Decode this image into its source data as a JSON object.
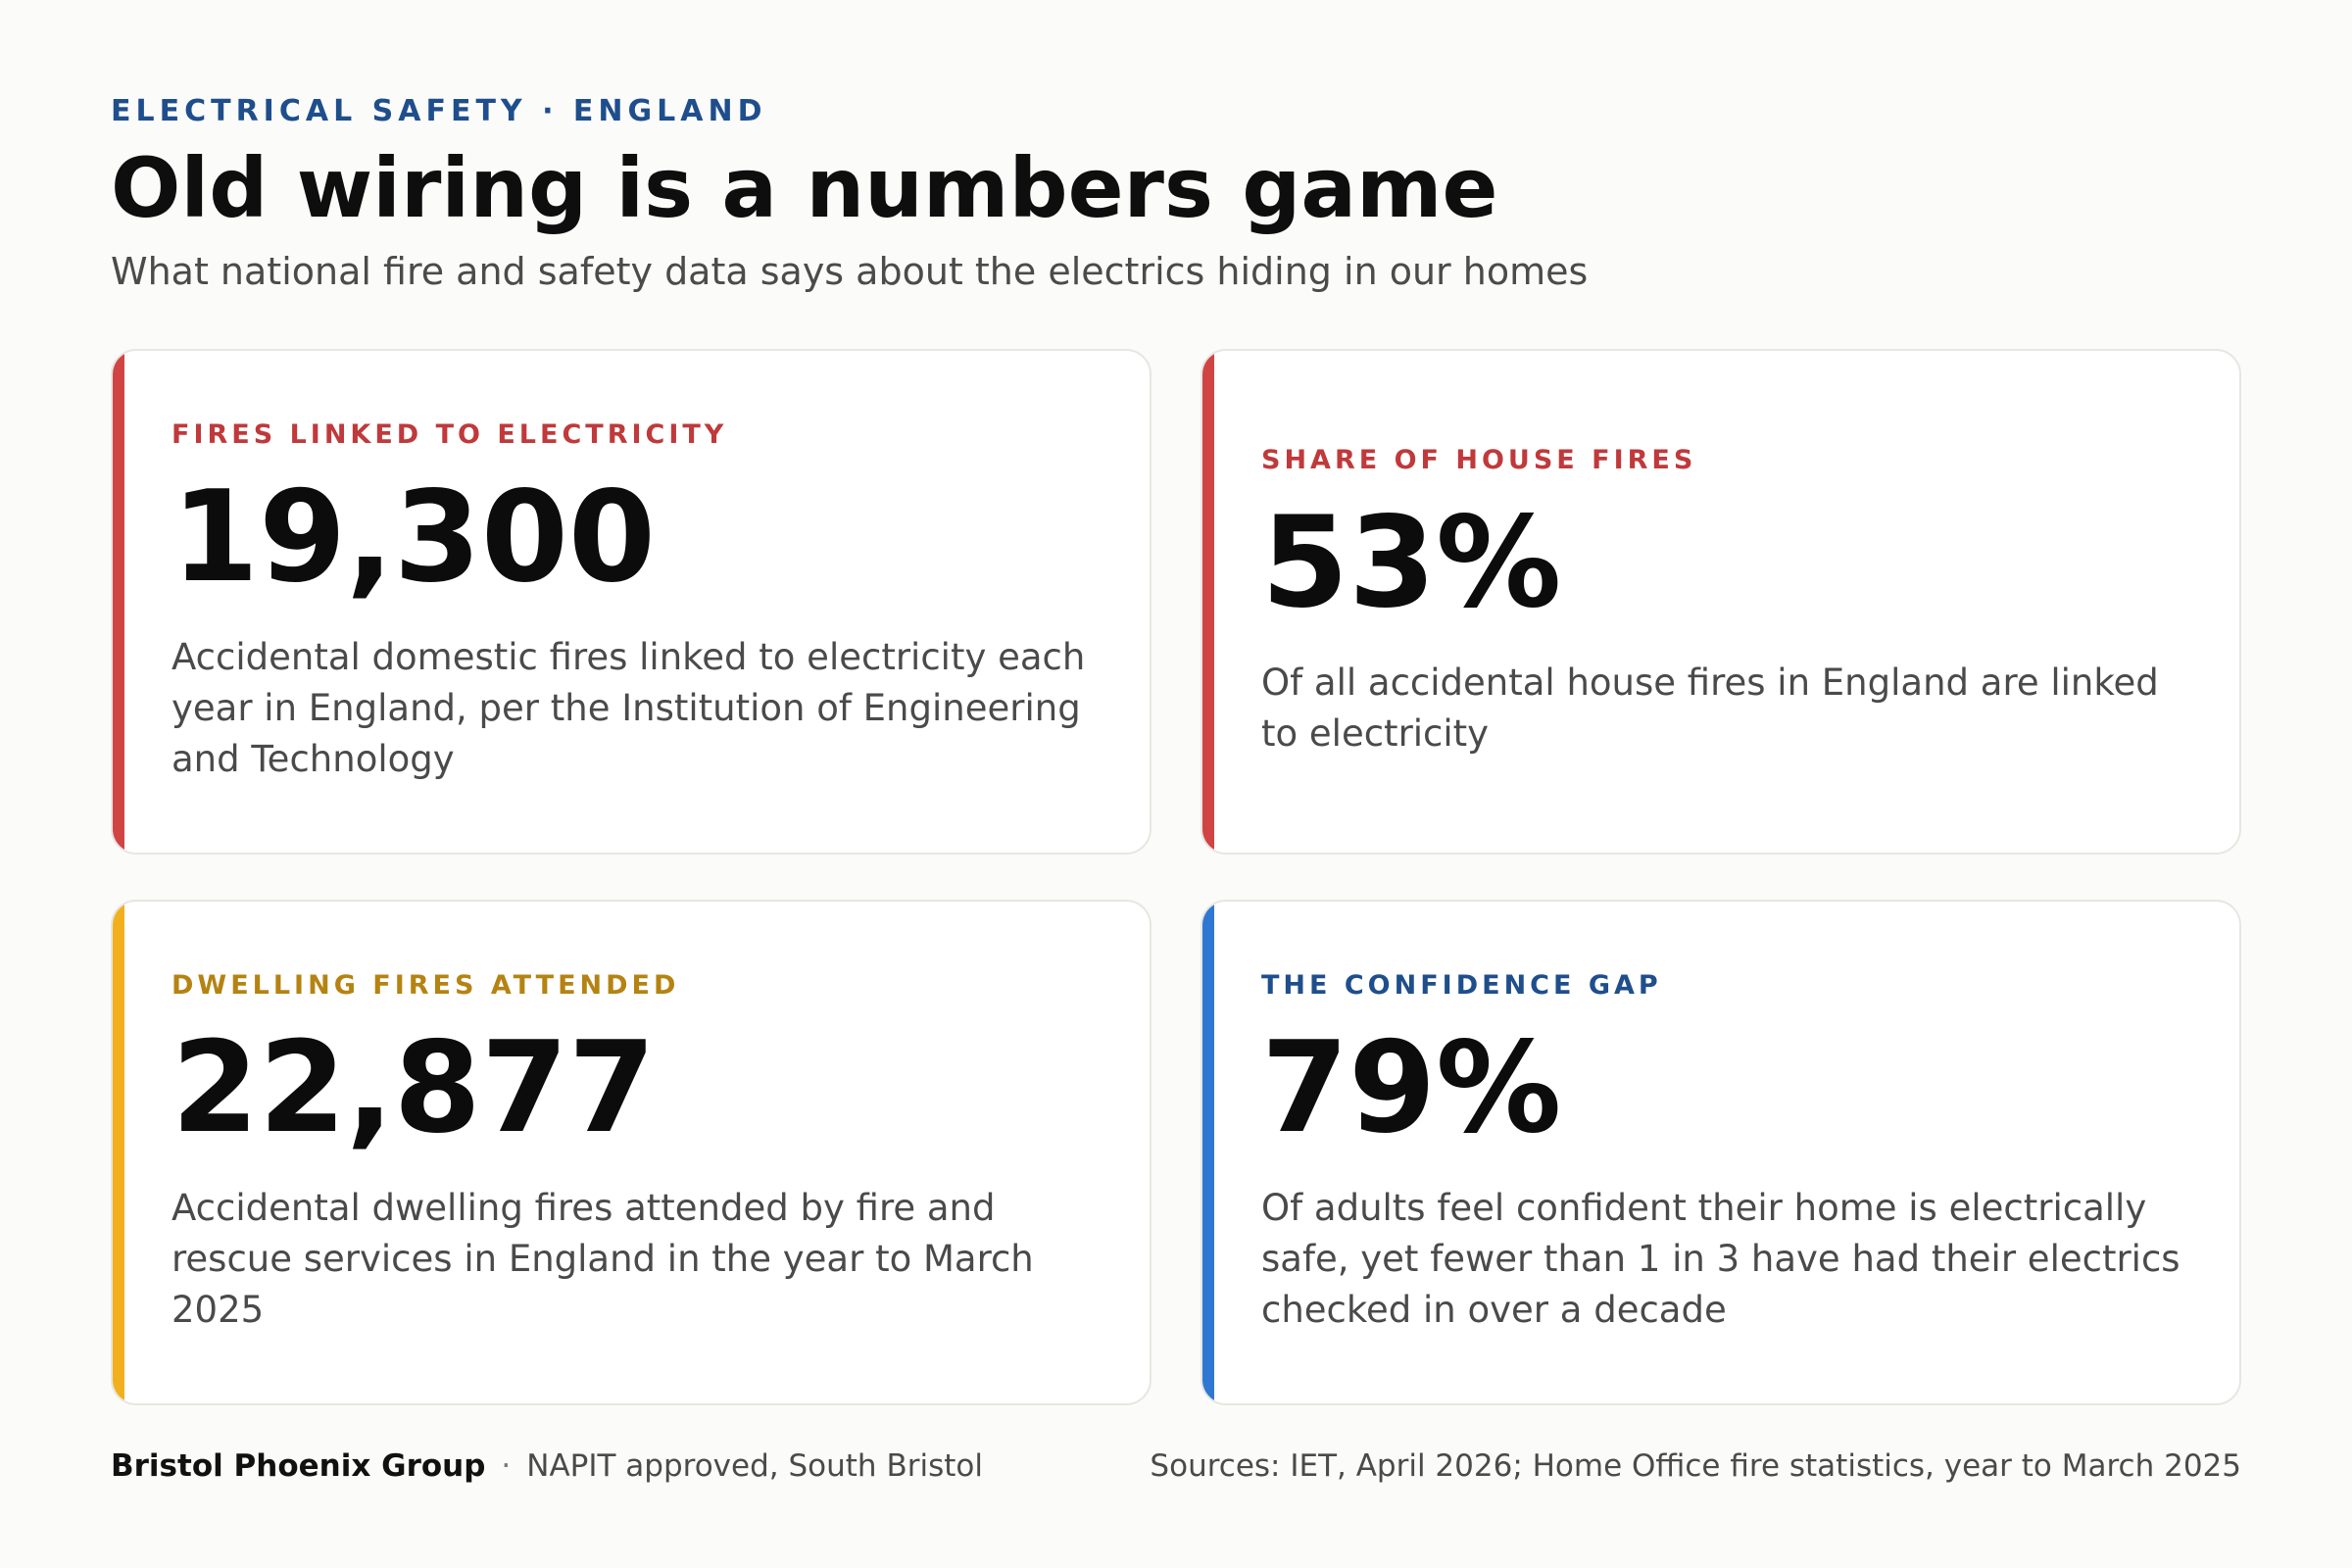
{
  "header": {
    "eyebrow": "ELECTRICAL SAFETY · ENGLAND",
    "title": "Old wiring is a numbers game",
    "subtitle": "What national fire and safety data says about the electrics hiding in our homes"
  },
  "cards": [
    {
      "label": "FIRES LINKED TO ELECTRICITY",
      "value": "19,300",
      "description": "Accidental domestic fires linked to electricity each year in England, per the Institution of Engineering and Technology",
      "accent_color": "#d14444",
      "label_color": "#c0393b"
    },
    {
      "label": "SHARE OF HOUSE FIRES",
      "value": "53%",
      "description": "Of all accidental house fires in England are linked to electricity",
      "accent_color": "#d14444",
      "label_color": "#c0393b"
    },
    {
      "label": "DWELLING FIRES ATTENDED",
      "value": "22,877",
      "description": "Accidental dwelling fires attended by fire and rescue services in England in the year to March 2025",
      "accent_color": "#f2b01e",
      "label_color": "#b58312"
    },
    {
      "label": "THE CONFIDENCE GAP",
      "value": "79%",
      "description": "Of adults feel confident their home is electrically safe, yet fewer than 1 in 3 have had their electrics checked in over a decade",
      "accent_color": "#2f78d2",
      "label_color": "#1f4e8c"
    }
  ],
  "footer": {
    "brand": "Bristol Phoenix Group",
    "separator": "·",
    "tagline": "NAPIT approved, South Bristol",
    "sources": "Sources: IET, April 2026; Home Office fire statistics, year to March 2025"
  }
}
